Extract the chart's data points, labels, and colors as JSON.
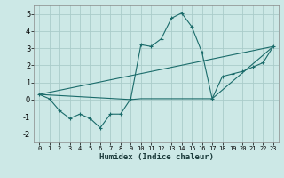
{
  "xlabel": "Humidex (Indice chaleur)",
  "bg_color": "#cce8e6",
  "grid_color": "#aaccca",
  "line_color": "#1a6b6a",
  "xlim": [
    -0.5,
    23.5
  ],
  "ylim": [
    -2.5,
    5.5
  ],
  "yticks": [
    -2,
    -1,
    0,
    1,
    2,
    3,
    4,
    5
  ],
  "xticks": [
    0,
    1,
    2,
    3,
    4,
    5,
    6,
    7,
    8,
    9,
    10,
    11,
    12,
    13,
    14,
    15,
    16,
    17,
    18,
    19,
    20,
    21,
    22,
    23
  ],
  "line1_x": [
    0,
    1,
    2,
    3,
    4,
    5,
    6,
    7,
    8,
    9,
    10,
    11,
    12,
    13,
    14,
    15,
    16,
    17,
    18,
    19,
    20,
    21,
    22,
    23
  ],
  "line1_y": [
    0.3,
    0.05,
    -0.65,
    -1.1,
    -0.85,
    -1.1,
    -1.65,
    -0.85,
    -0.85,
    0.05,
    3.2,
    3.1,
    3.55,
    4.75,
    5.05,
    4.25,
    2.75,
    0.05,
    1.35,
    1.5,
    1.65,
    1.9,
    2.15,
    3.1
  ],
  "line2_x": [
    0,
    23
  ],
  "line2_y": [
    0.3,
    3.1
  ],
  "line3_x": [
    0,
    9,
    10,
    17,
    23
  ],
  "line3_y": [
    0.3,
    0.0,
    0.05,
    0.05,
    3.1
  ]
}
